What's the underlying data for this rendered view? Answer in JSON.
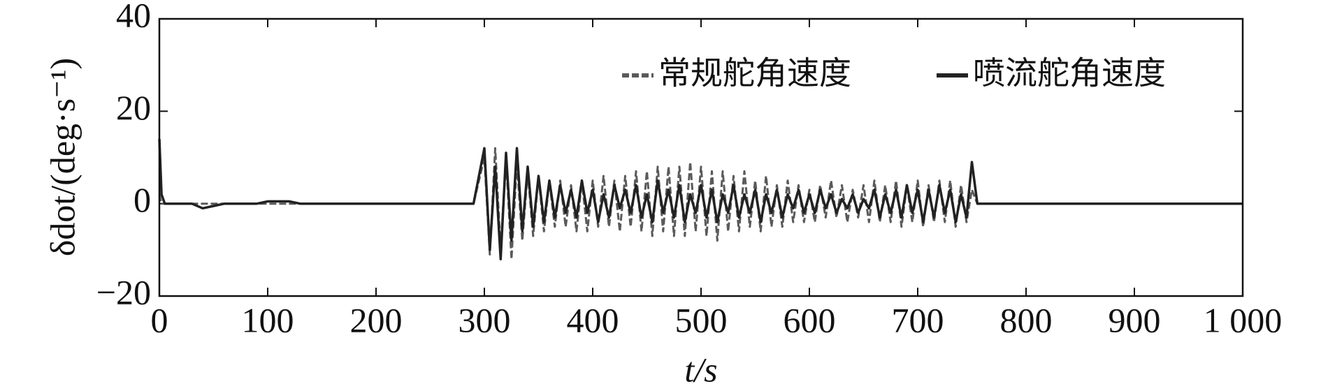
{
  "chart_data": {
    "type": "line",
    "xlabel": "t/s",
    "ylabel": "δdot/(deg·s⁻¹)",
    "xlim": [
      0,
      1000
    ],
    "xticks": [
      0,
      100,
      200,
      300,
      400,
      500,
      600,
      700,
      800,
      900,
      {
        "value": 1000,
        "label": "1 000"
      }
    ],
    "ylim": [
      -20,
      40
    ],
    "yticks": [
      {
        "value": -20,
        "label": "−20"
      },
      0,
      20,
      40
    ],
    "legend": "upper right",
    "x": [
      0,
      2,
      5,
      10,
      20,
      30,
      40,
      50,
      60,
      70,
      80,
      90,
      100,
      110,
      120,
      130,
      140,
      150,
      160,
      170,
      180,
      190,
      200,
      210,
      220,
      230,
      240,
      250,
      260,
      270,
      280,
      290,
      300,
      305,
      310,
      315,
      320,
      325,
      330,
      335,
      340,
      345,
      350,
      355,
      360,
      365,
      370,
      375,
      380,
      385,
      390,
      395,
      400,
      405,
      410,
      415,
      420,
      425,
      430,
      435,
      440,
      445,
      450,
      455,
      460,
      465,
      470,
      475,
      480,
      485,
      490,
      495,
      500,
      505,
      510,
      515,
      520,
      525,
      530,
      535,
      540,
      545,
      550,
      555,
      560,
      565,
      570,
      575,
      580,
      585,
      590,
      595,
      600,
      605,
      610,
      615,
      620,
      625,
      630,
      635,
      640,
      645,
      650,
      655,
      660,
      665,
      670,
      675,
      680,
      685,
      690,
      695,
      700,
      705,
      710,
      715,
      720,
      725,
      730,
      735,
      740,
      745,
      750,
      755,
      800,
      850,
      900,
      950,
      1000
    ],
    "series": [
      {
        "name": "常规舵角速度",
        "color": "#5a5a5a",
        "dash": true,
        "values": [
          2,
          0,
          0,
          0,
          0,
          0,
          0,
          0,
          0,
          0,
          0,
          0,
          0,
          0,
          0,
          0,
          0,
          0,
          0,
          0,
          0,
          0,
          0,
          0,
          0,
          0,
          0,
          0,
          0,
          0,
          0,
          0,
          10,
          -11,
          12,
          -10,
          10,
          -12,
          9,
          -8,
          7,
          -7,
          6,
          -6,
          5,
          -5,
          5,
          -5,
          4,
          -6,
          5,
          -6,
          5,
          -5,
          6,
          -5,
          5,
          -6,
          6,
          -5,
          7,
          -6,
          7,
          -7,
          8,
          -6,
          8,
          -7,
          8,
          -7,
          9,
          -6,
          8,
          -7,
          7,
          -8,
          7,
          -6,
          6,
          -6,
          7,
          -5,
          5,
          -6,
          6,
          -5,
          4,
          -5,
          5,
          -4,
          4,
          -4,
          3,
          -4,
          4,
          -3,
          5,
          -3,
          4,
          -4,
          3,
          -3,
          4,
          -4,
          5,
          -4,
          4,
          -4,
          5,
          -5,
          4,
          -4,
          5,
          -5,
          4,
          -4,
          5,
          -4,
          5,
          -5,
          4,
          -4,
          3,
          0,
          0,
          0,
          0,
          0,
          0
        ]
      },
      {
        "name": "喷流舵角速度",
        "color": "#222222",
        "dash": false,
        "values": [
          14,
          2,
          0,
          0,
          0,
          0,
          -1,
          -0.5,
          0,
          0,
          0,
          0,
          0.5,
          0.5,
          0.5,
          0,
          0,
          0,
          0,
          0,
          0,
          0,
          0,
          0,
          0,
          0,
          0,
          0,
          0,
          0,
          0,
          0,
          12,
          -10,
          8,
          -12,
          11,
          -8,
          12,
          -6,
          8,
          -5,
          6,
          -4,
          5,
          -3,
          4,
          -2,
          3,
          -3,
          5,
          -2,
          3,
          -4,
          2,
          -3,
          4,
          -1,
          3,
          -2,
          4,
          -3,
          2,
          -4,
          5,
          -2,
          3,
          -3,
          4,
          -4,
          2,
          -2,
          4,
          -3,
          3,
          -4,
          2,
          -2,
          4,
          -3,
          2,
          -2,
          3,
          -4,
          2,
          -2,
          3,
          -3,
          2,
          -1,
          3,
          -2,
          2,
          -2,
          3,
          -1,
          2,
          -2,
          1,
          -1,
          2,
          -2,
          1,
          -1,
          3,
          -3,
          2,
          -2,
          3,
          -3,
          4,
          -2,
          3,
          -4,
          3,
          -3,
          4,
          -2,
          3,
          -4,
          2,
          -3,
          9,
          0,
          0,
          0,
          0,
          0,
          0
        ]
      }
    ]
  }
}
